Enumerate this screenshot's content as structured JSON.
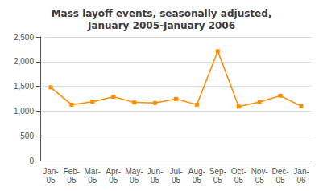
{
  "chart_data": {
    "type": "line",
    "title": "Mass layoff events, seasonally adjusted,\nJanuary 2005-January 2006",
    "categories": [
      "Jan-\n05",
      "Feb-\n05",
      "Mar-\n05",
      "Apr-\n05",
      "May-\n05",
      "Jun-\n05",
      "Jul-\n05",
      "Aug-\n05",
      "Sep-\n05",
      "Oct-\n05",
      "Nov-\n05",
      "Dec-\n05",
      "Jan-\n06"
    ],
    "values": [
      1480,
      1130,
      1190,
      1290,
      1175,
      1165,
      1245,
      1130,
      2210,
      1090,
      1185,
      1310,
      1100
    ],
    "color": "#FF8C00",
    "marker": "square",
    "ylim": [
      0,
      2500
    ],
    "yticks": [
      0,
      500,
      {
        "value": 1000,
        "label": "1,000"
      },
      {
        "value": 1500,
        "label": "1,500"
      },
      {
        "value": 2000,
        "label": "2,000"
      },
      {
        "value": 2500,
        "label": "2,500"
      }
    ],
    "grid": true
  }
}
